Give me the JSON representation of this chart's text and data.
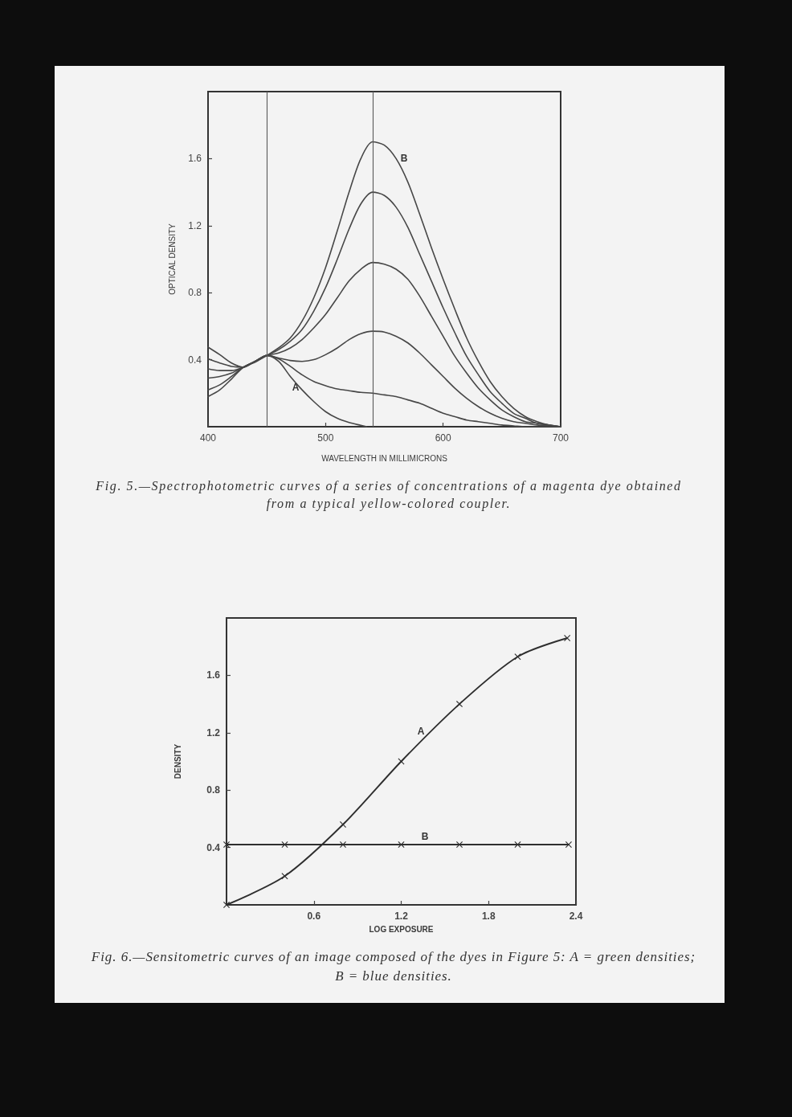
{
  "chart_data": [
    {
      "type": "line",
      "xlabel": "WAVELENGTH IN MILLIMICRONS",
      "ylabel": "OPTICAL DENSITY",
      "xlim": [
        400,
        700
      ],
      "ylim": [
        0,
        2
      ],
      "xticks": [
        400,
        500,
        600,
        700
      ],
      "yticks": [
        0.4,
        0.8,
        1.2,
        1.6
      ],
      "x": [
        400,
        410,
        420,
        430,
        440,
        450,
        460,
        470,
        480,
        490,
        500,
        510,
        520,
        530,
        540,
        550,
        560,
        570,
        580,
        590,
        600,
        610,
        620,
        630,
        640,
        650,
        660,
        670,
        680,
        690,
        700
      ],
      "series": [
        {
          "color": "#474747",
          "values": [
            0.18,
            0.22,
            0.285,
            0.355,
            0.385,
            0.425,
            0.47,
            0.53,
            0.63,
            0.77,
            0.95,
            1.17,
            1.4,
            1.6,
            1.7,
            1.68,
            1.6,
            1.46,
            1.27,
            1.07,
            0.88,
            0.7,
            0.53,
            0.39,
            0.27,
            0.18,
            0.11,
            0.06,
            0.03,
            0.01,
            0
          ]
        },
        {
          "color": "#474747",
          "values": [
            0.22,
            0.25,
            0.3,
            0.355,
            0.39,
            0.425,
            0.46,
            0.51,
            0.58,
            0.69,
            0.83,
            1.0,
            1.18,
            1.33,
            1.4,
            1.38,
            1.31,
            1.19,
            1.03,
            0.87,
            0.71,
            0.56,
            0.42,
            0.31,
            0.21,
            0.14,
            0.08,
            0.05,
            0.02,
            0.01,
            0
          ]
        },
        {
          "color": "#474747",
          "values": [
            0.29,
            0.3,
            0.32,
            0.355,
            0.39,
            0.425,
            0.44,
            0.47,
            0.52,
            0.59,
            0.67,
            0.77,
            0.87,
            0.94,
            0.98,
            0.97,
            0.94,
            0.88,
            0.78,
            0.66,
            0.54,
            0.42,
            0.32,
            0.23,
            0.16,
            0.1,
            0.06,
            0.03,
            0.02,
            0.01,
            0
          ]
        },
        {
          "color": "#474747",
          "values": [
            0.345,
            0.335,
            0.335,
            0.355,
            0.39,
            0.425,
            0.41,
            0.395,
            0.39,
            0.4,
            0.43,
            0.47,
            0.52,
            0.555,
            0.57,
            0.565,
            0.54,
            0.5,
            0.44,
            0.37,
            0.3,
            0.23,
            0.17,
            0.12,
            0.08,
            0.05,
            0.03,
            0.02,
            0.01,
            0.005,
            0
          ]
        },
        {
          "color": "#474747",
          "values": [
            0.405,
            0.38,
            0.36,
            0.355,
            0.39,
            0.425,
            0.405,
            0.36,
            0.31,
            0.27,
            0.245,
            0.225,
            0.215,
            0.205,
            0.2,
            0.19,
            0.18,
            0.16,
            0.14,
            0.11,
            0.08,
            0.06,
            0.04,
            0.03,
            0.02,
            0.01,
            0.005,
            0,
            0,
            0,
            0
          ]
        },
        {
          "color": "#474747",
          "x": [
            400,
            410,
            420,
            430,
            440,
            450,
            460,
            470,
            480,
            490,
            500,
            510,
            520,
            530,
            535
          ],
          "values": [
            0.475,
            0.43,
            0.38,
            0.355,
            0.39,
            0.425,
            0.39,
            0.3,
            0.22,
            0.15,
            0.09,
            0.05,
            0.025,
            0.008,
            0
          ]
        }
      ],
      "ref_lines": [
        {
          "axis": "x",
          "value": 450,
          "color": "#5a5a5a"
        },
        {
          "axis": "x",
          "value": 540,
          "color": "#5a5a5a"
        }
      ],
      "annotations": [
        "A",
        "B",
        "Fig. 5.—Spectrophotometric curves of a series of concentrations of a magenta dye obtained from a typical yellow-colored coupler."
      ]
    },
    {
      "type": "line",
      "xlabel": "LOG EXPOSURE",
      "ylabel": "DENSITY",
      "xlim": [
        0,
        2.4
      ],
      "ylim": [
        0,
        2
      ],
      "xticks": [
        0.6,
        1.2,
        1.8,
        2.4
      ],
      "yticks": [
        0.4,
        0.8,
        1.2,
        1.6
      ],
      "marker": "cross",
      "series": [
        {
          "color": "#2e2e2e",
          "x": [
            0,
            0.4,
            0.8,
            1.2,
            1.6,
            2.0,
            2.34
          ],
          "values": [
            0,
            0.2,
            0.56,
            1.0,
            1.4,
            1.73,
            1.86
          ]
        },
        {
          "color": "#2e2e2e",
          "x": [
            0,
            0.4,
            0.8,
            1.2,
            1.6,
            2.0,
            2.35
          ],
          "values": [
            0.42,
            0.42,
            0.42,
            0.42,
            0.42,
            0.42,
            0.42
          ]
        }
      ],
      "annotations": [
        "A",
        "B",
        "Fig. 6.—Sensitometric curves of an image composed of the dyes in Figure 5: A = green densities; B = blue densities."
      ]
    }
  ]
}
